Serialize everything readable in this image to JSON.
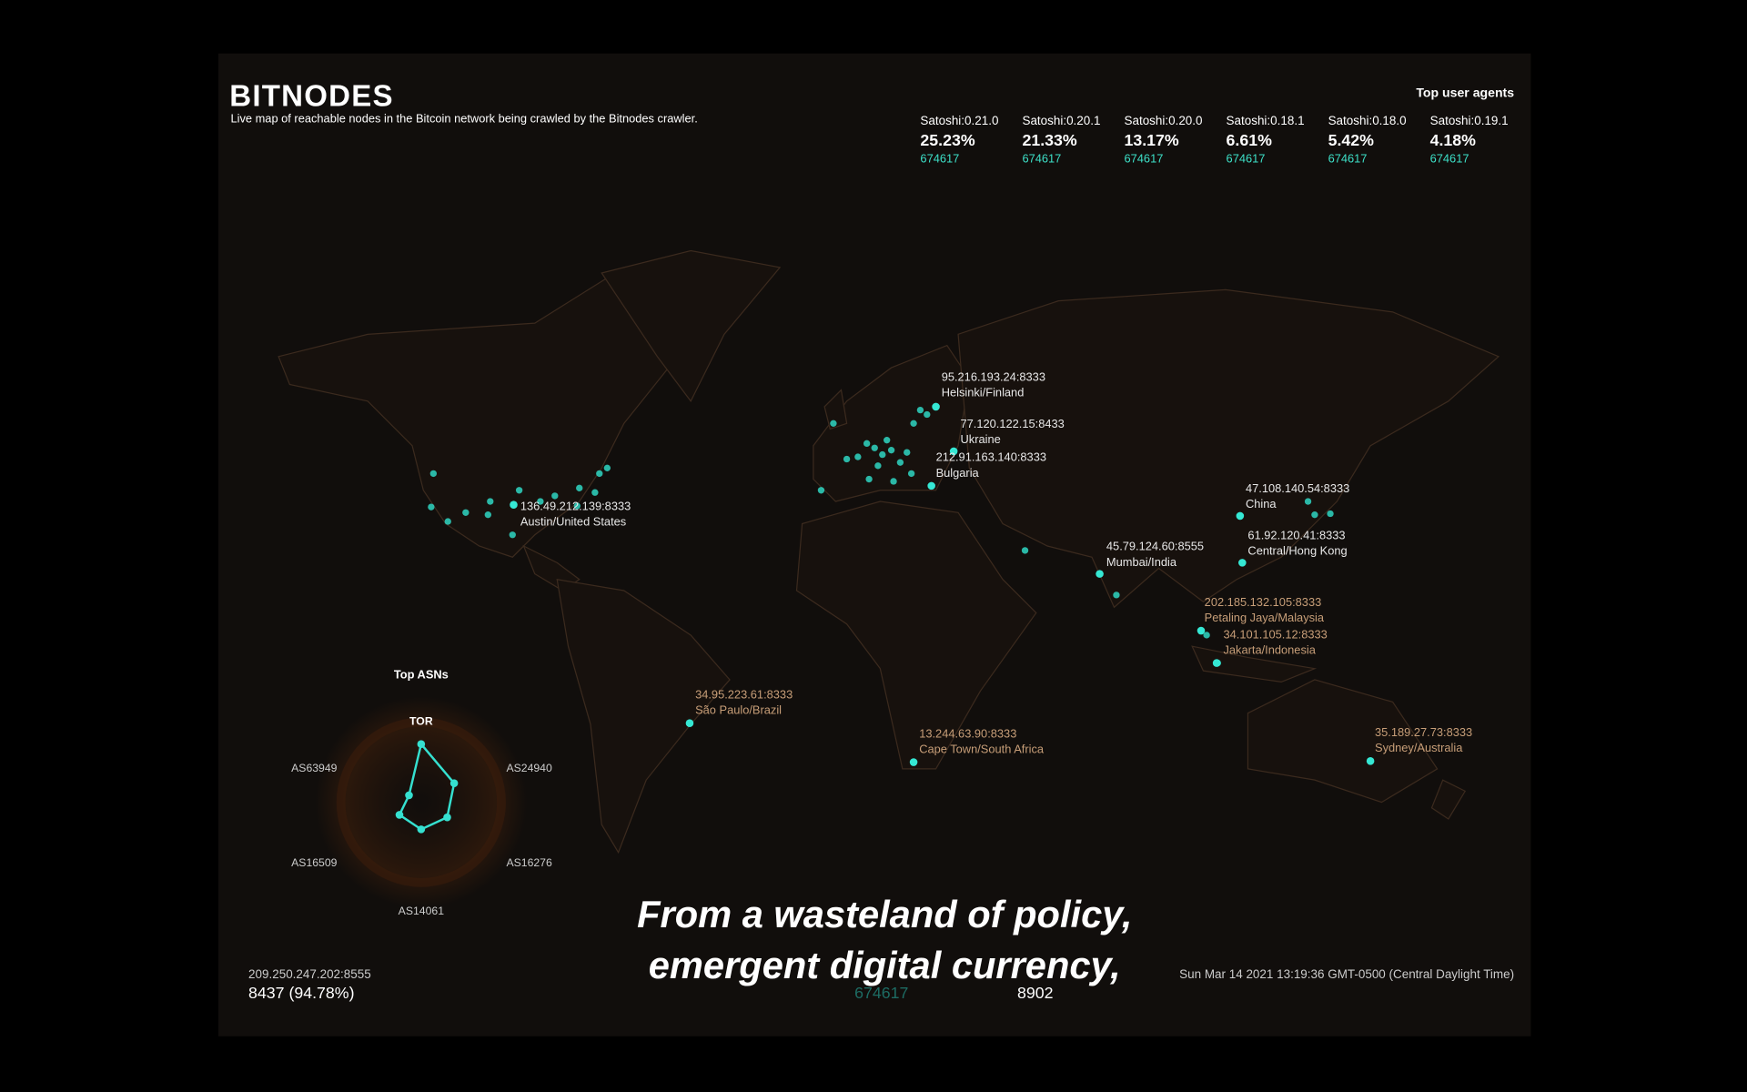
{
  "header": {
    "title": "BITNODES",
    "subtitle": "Live map of reachable nodes in the Bitcoin network being crawled by the Bitnodes crawler."
  },
  "user_agents": {
    "heading": "Top user agents",
    "items": [
      {
        "name": "Satoshi:0.21.0",
        "share": "25.23%",
        "height": "674617"
      },
      {
        "name": "Satoshi:0.20.1",
        "share": "21.33%",
        "height": "674617"
      },
      {
        "name": "Satoshi:0.20.0",
        "share": "13.17%",
        "height": "674617"
      },
      {
        "name": "Satoshi:0.18.1",
        "share": "6.61%",
        "height": "674617"
      },
      {
        "name": "Satoshi:0.18.0",
        "share": "5.42%",
        "height": "674617"
      },
      {
        "name": "Satoshi:0.19.1",
        "share": "4.18%",
        "height": "674617"
      }
    ]
  },
  "nodes": [
    {
      "address": "95.216.193.24:8333",
      "location": "Helsinki/Finland"
    },
    {
      "address": "77.120.122.15:8433",
      "location": "Ukraine"
    },
    {
      "address": "212.91.163.140:8333",
      "location": "Bulgaria"
    },
    {
      "address": "136.49.212.139:8333",
      "location": "Austin/United States"
    },
    {
      "address": "47.108.140.54:8333",
      "location": "China"
    },
    {
      "address": "61.92.120.41:8333",
      "location": "Central/Hong Kong"
    },
    {
      "address": "45.79.124.60:8555",
      "location": "Mumbai/India"
    },
    {
      "address": "202.185.132.105:8333",
      "location": "Petaling Jaya/Malaysia"
    },
    {
      "address": "34.101.105.12:8333",
      "location": "Jakarta/Indonesia"
    },
    {
      "address": "34.95.223.61:8333",
      "location": "São Paulo/Brazil"
    },
    {
      "address": "13.244.63.90:8333",
      "location": "Cape Town/South Africa"
    },
    {
      "address": "35.189.27.73:8333",
      "location": "Sydney/Australia"
    }
  ],
  "chart_data": {
    "type": "radar",
    "title": "Top ASNs",
    "categories": [
      "TOR",
      "AS24940",
      "AS16276",
      "AS14061",
      "AS16509",
      "AS63949"
    ],
    "values": [
      0.58,
      0.38,
      0.3,
      0.27,
      0.25,
      0.14
    ],
    "rlim": [
      0,
      1
    ],
    "color": "#35e0d0"
  },
  "footer": {
    "address": "209.250.247.202:8555",
    "count": "8437 (94.78%)",
    "height": "674617",
    "total": "8902",
    "timestamp": "Sun Mar 14 2021 13:19:36 GMT-0500 (Central Daylight Time)"
  },
  "captions": [
    "From a wasteland of policy,",
    "emergent digital currency,"
  ]
}
